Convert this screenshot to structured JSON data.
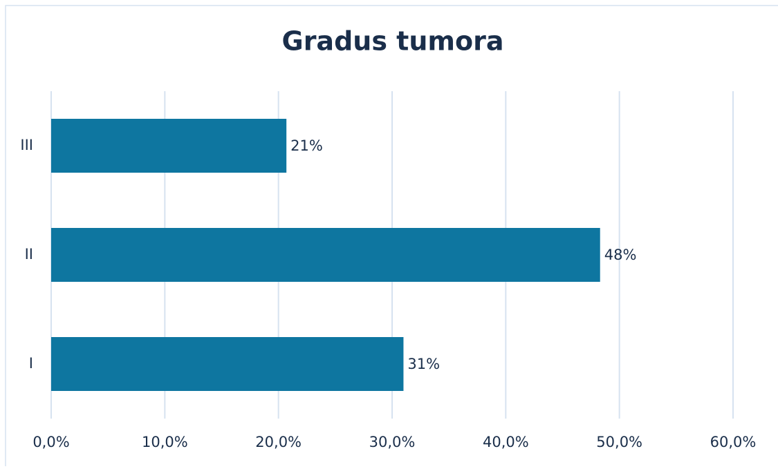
{
  "chart_data": {
    "type": "hbar",
    "title": "Gradus tumora",
    "categories": [
      "I",
      "II",
      "III"
    ],
    "values": [
      31.0,
      48.3,
      20.7
    ],
    "value_labels": [
      "31%",
      "48%",
      "21%"
    ],
    "color": "#0e76a0",
    "xlim": [
      0,
      60
    ],
    "xticks": [
      {
        "value": 0,
        "label": "0,0%"
      },
      {
        "value": 10,
        "label": "10,0%"
      },
      {
        "value": 20,
        "label": "20,0%"
      },
      {
        "value": 30,
        "label": "30,0%"
      },
      {
        "value": 40,
        "label": "40,0%"
      },
      {
        "value": 50,
        "label": "50,0%"
      },
      {
        "value": 60,
        "label": "60,0%"
      }
    ],
    "grid": true
  }
}
